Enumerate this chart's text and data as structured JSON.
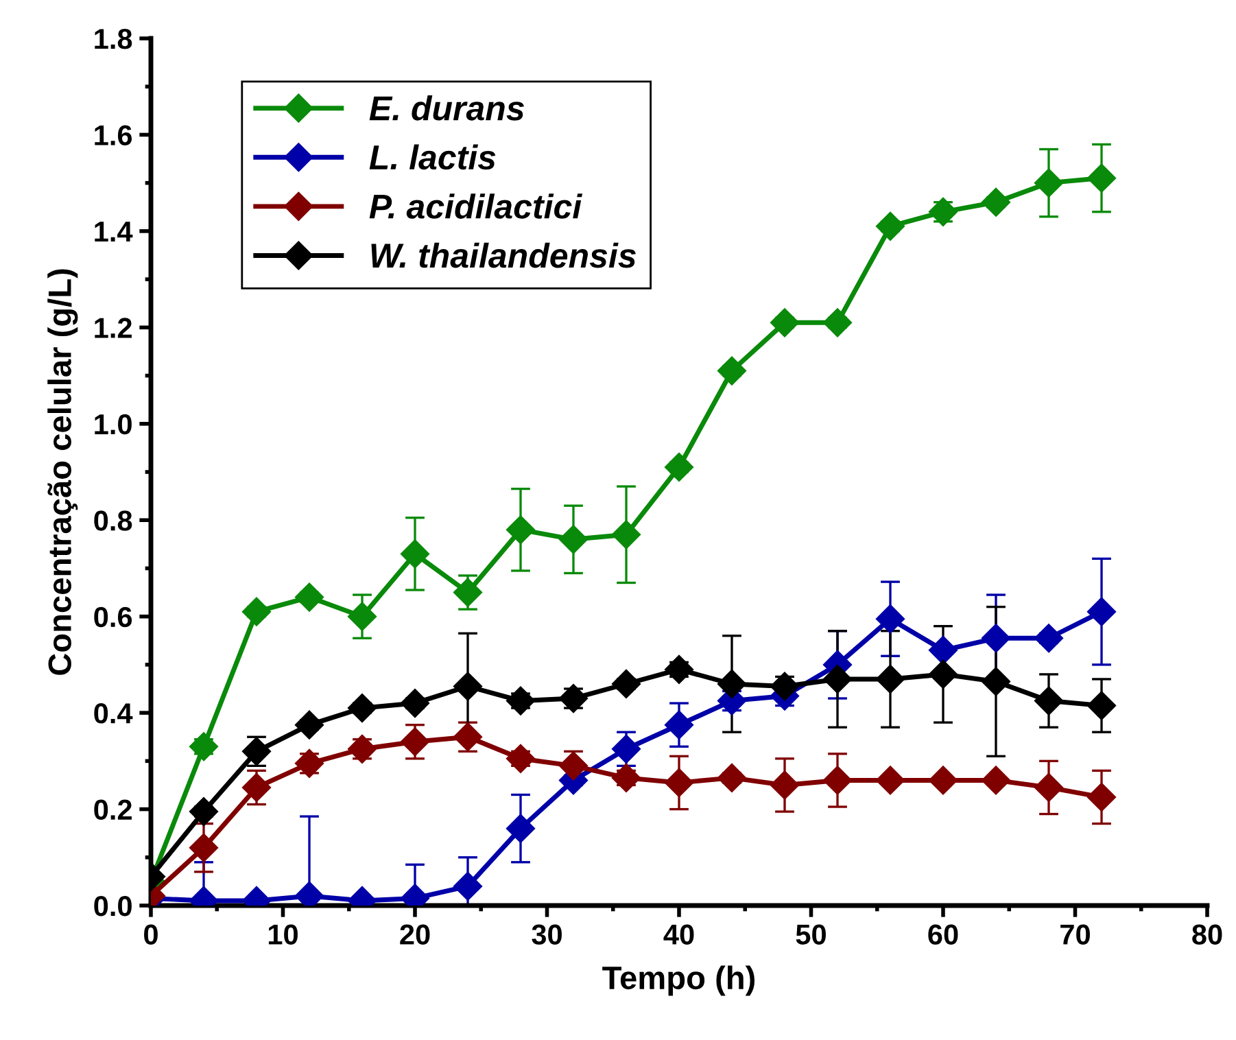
{
  "chart_data": {
    "type": "line",
    "xlabel": "Tempo (h)",
    "ylabel": "Concentração celular (g/L)",
    "x": [
      0,
      4,
      8,
      12,
      16,
      20,
      24,
      28,
      32,
      36,
      40,
      44,
      48,
      52,
      56,
      60,
      64,
      68,
      72
    ],
    "xlim": [
      0,
      80
    ],
    "xticks": [
      0,
      10,
      20,
      30,
      40,
      50,
      60,
      70,
      80
    ],
    "ylim": [
      0,
      1.8
    ],
    "yticks": [
      {
        "value": 0,
        "label": "0.0"
      },
      0.2,
      0.4,
      0.6,
      0.8,
      {
        "value": 1,
        "label": "1.0"
      },
      1.2,
      1.4,
      1.6,
      1.8
    ],
    "grid": false,
    "legend": "top left",
    "marker": "diamond",
    "line_style": "solid",
    "series": [
      {
        "name": "E. durans",
        "color": "#0a8a0a",
        "values": [
          0.05,
          0.33,
          0.61,
          0.64,
          0.6,
          0.73,
          0.65,
          0.78,
          0.76,
          0.77,
          0.91,
          1.11,
          1.21,
          1.21,
          1.41,
          1.44,
          1.46,
          1.5,
          1.51
        ],
        "errors": [
          null,
          0.015,
          0.01,
          0.01,
          0.045,
          0.075,
          0.035,
          0.085,
          0.07,
          0.1,
          0.01,
          0.01,
          0.01,
          0.01,
          0.01,
          0.02,
          0.01,
          0.07,
          0.07
        ]
      },
      {
        "name": "L. lactis",
        "color": "#0000a8",
        "values": [
          0.015,
          0.01,
          0.01,
          0.02,
          0.01,
          0.015,
          0.04,
          0.16,
          0.26,
          0.325,
          0.375,
          0.425,
          0.435,
          0.5,
          0.595,
          0.53,
          0.555,
          0.555,
          0.61
        ],
        "errors": [
          0.005,
          0.08,
          0.005,
          0.165,
          0.005,
          0.07,
          0.06,
          0.07,
          0.01,
          0.035,
          0.045,
          0.02,
          0.02,
          0.07,
          0.077,
          null,
          0.09,
          0.01,
          0.11
        ]
      },
      {
        "name": "P. acidilactici",
        "color": "#800000",
        "values": [
          0.02,
          0.12,
          0.245,
          0.295,
          0.325,
          0.34,
          0.35,
          0.305,
          0.29,
          0.265,
          0.255,
          0.265,
          0.25,
          0.26,
          0.26,
          0.26,
          0.26,
          0.245,
          0.225
        ],
        "errors": [
          null,
          0.05,
          0.035,
          0.02,
          0.02,
          0.035,
          0.03,
          0.015,
          0.03,
          0.015,
          0.055,
          0.01,
          0.055,
          0.055,
          0.005,
          0.005,
          0.005,
          0.055,
          0.055
        ]
      },
      {
        "name": "W. thailandensis",
        "color": "#000000",
        "values": [
          0.06,
          0.195,
          0.32,
          0.375,
          0.41,
          0.42,
          0.455,
          0.425,
          0.43,
          0.46,
          0.49,
          0.46,
          0.455,
          0.47,
          0.47,
          0.48,
          0.465,
          0.425,
          0.415
        ],
        "errors": [
          0.005,
          0.01,
          0.03,
          0.01,
          0.01,
          0.01,
          0.11,
          0.015,
          0.02,
          0.01,
          0.015,
          0.1,
          0.02,
          0.1,
          0.1,
          0.1,
          0.155,
          0.055,
          0.055
        ]
      }
    ]
  }
}
